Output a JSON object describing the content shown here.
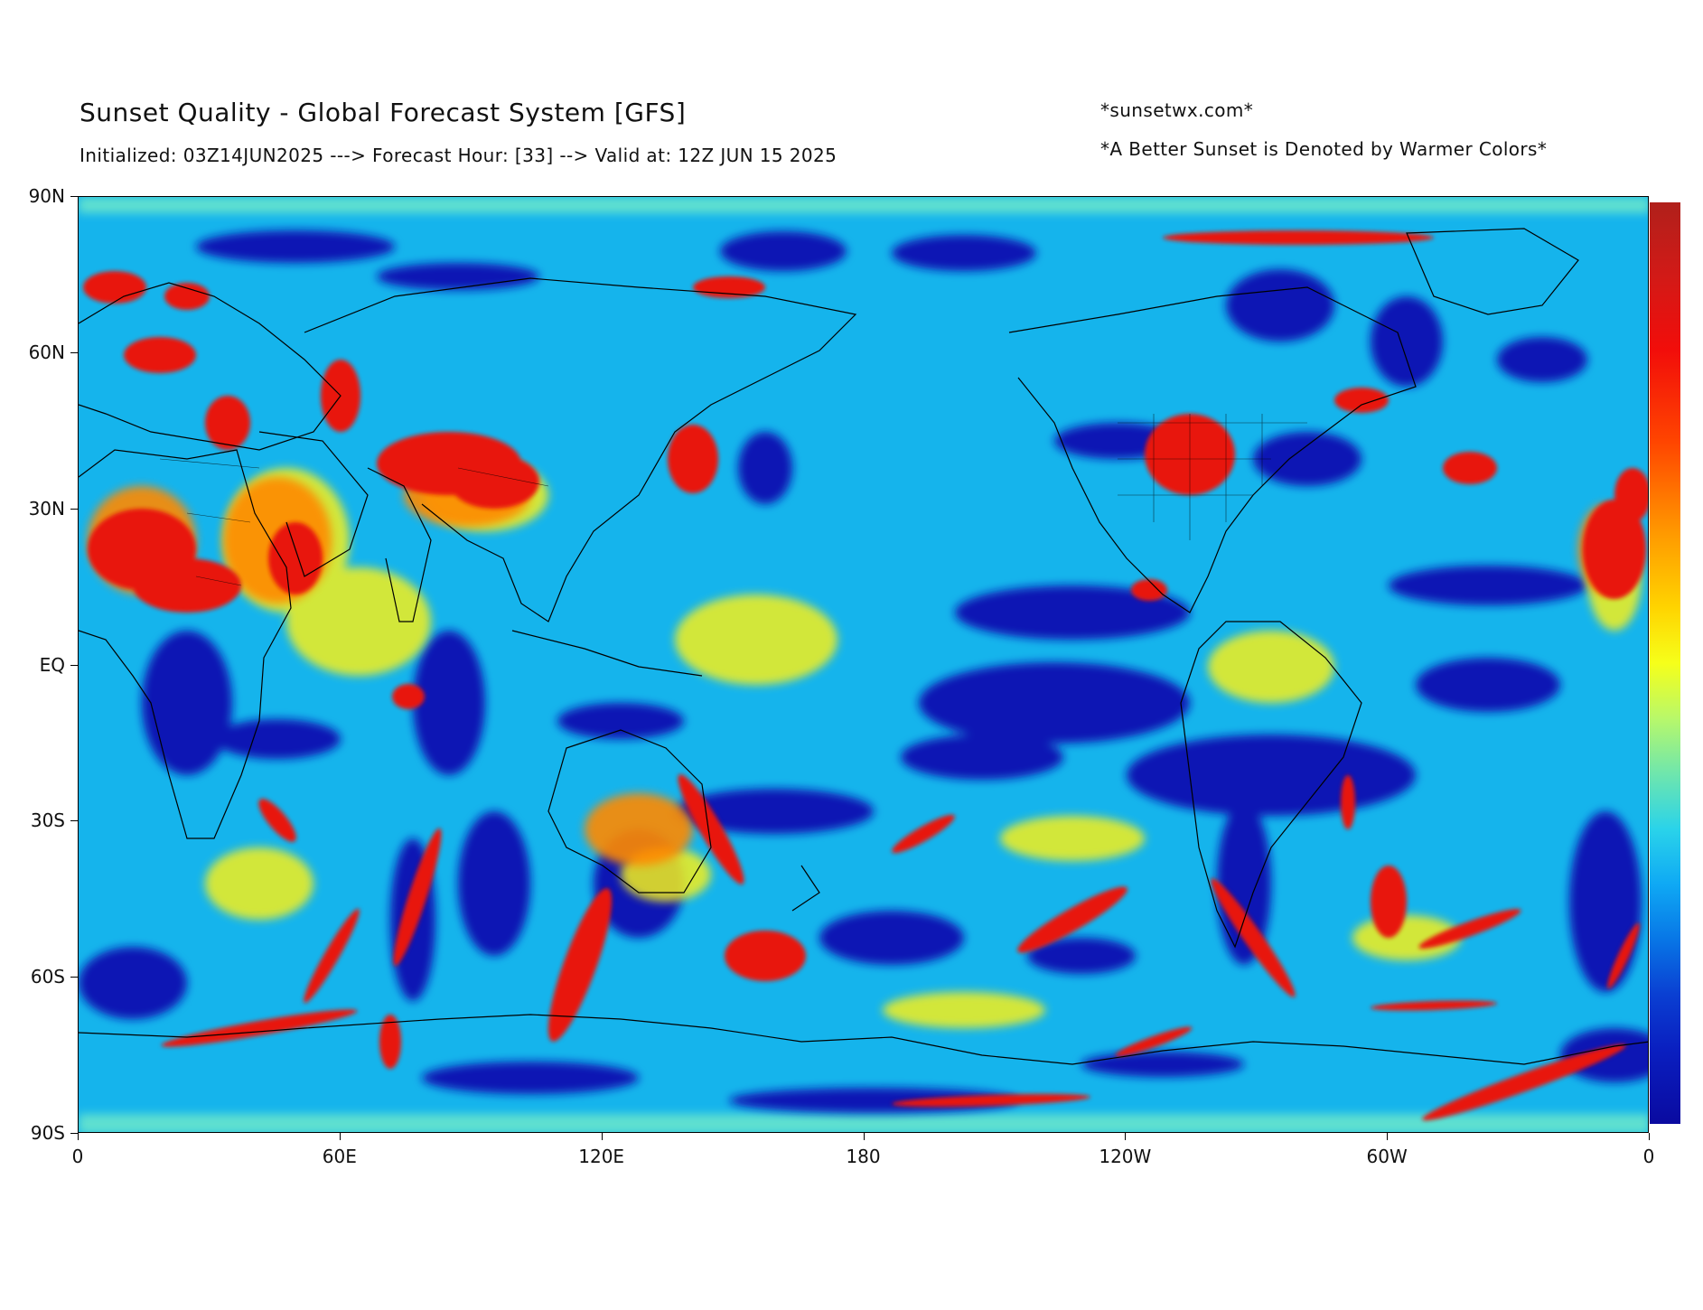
{
  "header": {
    "title": "Sunset Quality - Global Forecast System [GFS]",
    "subtitle": "Initialized: 03Z14JUN2025 ---> Forecast Hour: [33] --> Valid at: 12Z JUN 15 2025",
    "credit": "*sunsetwx.com*",
    "note": "*A Better Sunset is Denoted by Warmer Colors*"
  },
  "map": {
    "projection": "plate-carree",
    "extent": {
      "lon": [
        0,
        360
      ],
      "lat": [
        -90,
        90
      ]
    },
    "lat_ticks": [
      "90N",
      "60N",
      "30N",
      "EQ",
      "30S",
      "60S",
      "90S"
    ],
    "lon_ticks": [
      "0",
      "60E",
      "120E",
      "180",
      "120W",
      "60W",
      "0"
    ],
    "field": "sunset quality",
    "colorbar_colors": [
      "#b0201b",
      "#f20d0a",
      "#ff9a00",
      "#f6ff1a",
      "#6fe6ad",
      "#0fa9f4",
      "#0a3fd2",
      "#0a0aa0"
    ],
    "colorbar_labels": []
  }
}
